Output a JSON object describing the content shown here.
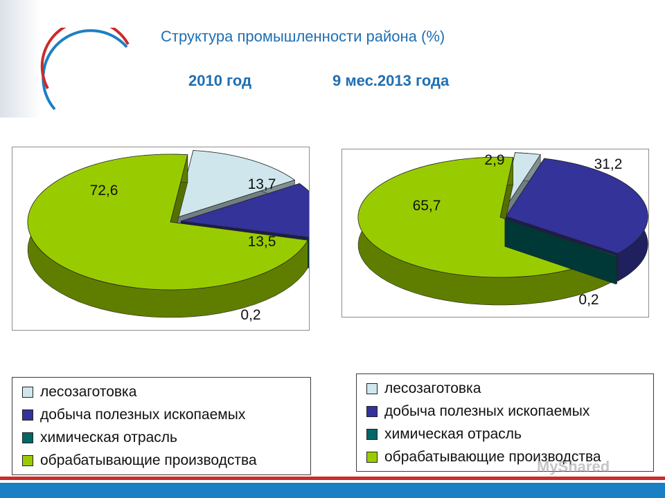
{
  "slide": {
    "title": "Структура промышленности района (%)",
    "subtitle_left": "2010 год",
    "subtitle_right": "9 мес.2013 года",
    "watermark": "MyShared"
  },
  "colors": {
    "title": "#1f6fb2",
    "accent_red": "#cc2a2a",
    "accent_blue": "#1b7fc4"
  },
  "chart_data": [
    {
      "type": "pie",
      "title": "",
      "categories": [
        "лесозаготовка",
        "добыча полезных ископаемых",
        "химическая отрасль",
        "обрабатывающие производства"
      ],
      "values": [
        13.7,
        13.5,
        0.2,
        72.6
      ],
      "labels": [
        "13,7",
        "13,5",
        "0,2",
        "72,6"
      ],
      "colors": [
        "#cfe7ec",
        "#333399",
        "#006666",
        "#99cc00"
      ],
      "legend": "bottom"
    },
    {
      "type": "pie",
      "title": "",
      "categories": [
        "лесозаготовка",
        "добыча полезных ископаемых",
        "химическая отрасль",
        "обрабатывающие производства"
      ],
      "values": [
        2.9,
        31.2,
        0.2,
        65.7
      ],
      "labels": [
        "2,9",
        "31,2",
        "0,2",
        "65,7"
      ],
      "colors": [
        "#cfe7ec",
        "#333399",
        "#006666",
        "#99cc00"
      ],
      "legend": "bottom"
    }
  ]
}
